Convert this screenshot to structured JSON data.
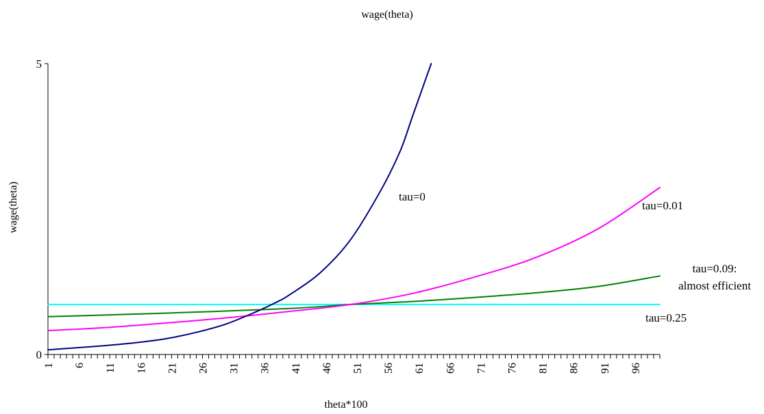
{
  "chart_data": {
    "type": "line",
    "title": "wage(theta)",
    "xlabel": "theta*100",
    "ylabel": "wage(theta)",
    "x_range": [
      1,
      100
    ],
    "ylim": [
      0,
      5
    ],
    "y_ticks": [
      0,
      5
    ],
    "x_ticks": [
      1,
      6,
      11,
      16,
      21,
      26,
      31,
      36,
      41,
      46,
      51,
      56,
      61,
      66,
      71,
      76,
      81,
      86,
      91,
      96
    ],
    "grid": false,
    "legend": "none",
    "series": [
      {
        "name": "tau=0",
        "color": "#000080",
        "x": [
          1,
          5,
          10,
          15,
          20,
          25,
          30,
          35,
          38,
          40,
          45,
          50,
          55,
          58,
          60,
          63
        ],
        "y": [
          0.08,
          0.11,
          0.15,
          0.2,
          0.27,
          0.38,
          0.53,
          0.75,
          0.9,
          1.02,
          1.4,
          1.98,
          2.85,
          3.5,
          4.1,
          5.0
        ]
      },
      {
        "name": "tau=0.01",
        "color": "#ff00ff",
        "x": [
          1,
          10,
          20,
          30,
          40,
          50,
          60,
          70,
          80,
          90,
          100
        ],
        "y": [
          0.41,
          0.46,
          0.54,
          0.63,
          0.74,
          0.86,
          1.05,
          1.33,
          1.67,
          2.16,
          2.87
        ]
      },
      {
        "name": "tau=0.09: almost efficient",
        "color": "#008000",
        "x": [
          1,
          20,
          40,
          50,
          60,
          70,
          80,
          90,
          100
        ],
        "y": [
          0.65,
          0.71,
          0.79,
          0.86,
          0.91,
          0.98,
          1.06,
          1.17,
          1.35
        ]
      },
      {
        "name": "tau=0.25",
        "color": "#00ffff",
        "x": [
          1,
          100
        ],
        "y": [
          0.86,
          0.86
        ]
      }
    ],
    "annotations": [
      {
        "key": "a0",
        "lines": [
          "tau=0"
        ]
      },
      {
        "key": "a1",
        "lines": [
          "tau=0.01"
        ]
      },
      {
        "key": "a2",
        "lines": [
          "tau=0.09:",
          "almost efficient"
        ]
      },
      {
        "key": "a3",
        "lines": [
          "tau=0.25"
        ]
      }
    ]
  }
}
